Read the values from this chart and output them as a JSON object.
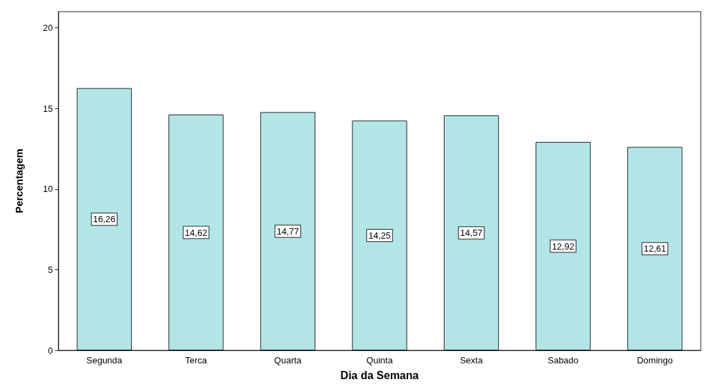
{
  "chart_data": {
    "type": "bar",
    "xlabel": "Dia da Semana",
    "ylabel": "Percentagem",
    "categories": [
      "Segunda",
      "Terca",
      "Quarta",
      "Quinta",
      "Sexta",
      "Sabado",
      "Domingo"
    ],
    "values": [
      16.26,
      14.62,
      14.77,
      14.25,
      14.57,
      12.92,
      12.61
    ],
    "value_labels": [
      "16,26",
      "14,62",
      "14,77",
      "14,25",
      "14,57",
      "12,92",
      "12,61"
    ],
    "color": "#b3e5e7",
    "ylim": [
      0,
      21
    ],
    "yticks": [
      0,
      5,
      10,
      15,
      20
    ],
    "grid": false
  }
}
